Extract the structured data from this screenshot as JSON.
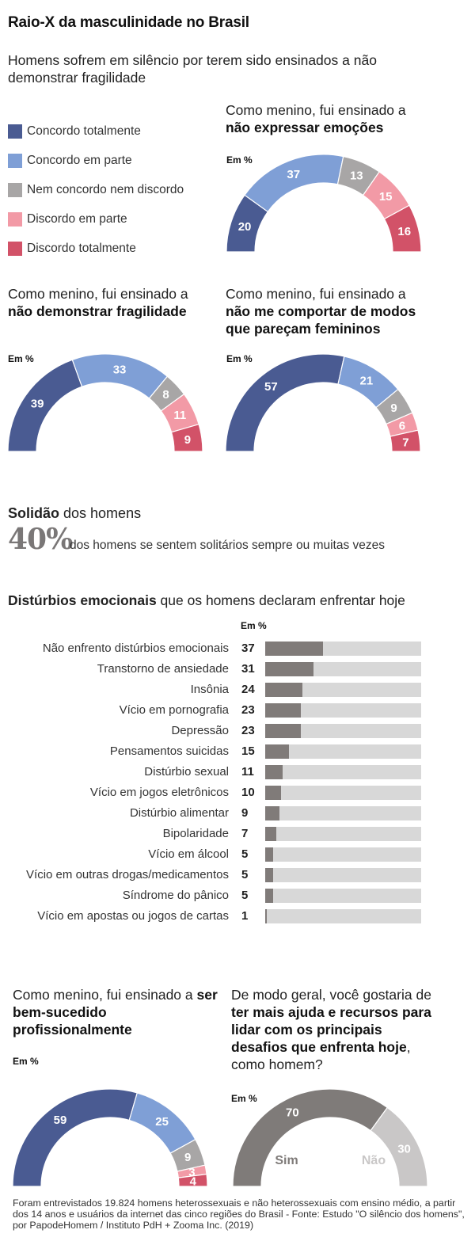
{
  "header": {
    "title": "Raio-X da masculinidade no Brasil",
    "subtitle": "Homens sofrem em silêncio por terem sido ensinados a não demonstrar fragilidade"
  },
  "legend": [
    {
      "label": "Concordo totalmente",
      "color": "#4a5b92"
    },
    {
      "label": "Concordo em parte",
      "color": "#7f9fd6"
    },
    {
      "label": "Nem concordo nem discordo",
      "color": "#a8a6a6"
    },
    {
      "label": "Discordo em parte",
      "color": "#f29aa6"
    },
    {
      "label": "Discordo totalmente",
      "color": "#d25268"
    }
  ],
  "unit_label": "Em %",
  "solidao": {
    "heading_bold": "Solidão",
    "heading_rest": " dos homens",
    "big_number": "40%",
    "text": "dos homens se sentem solitários sempre ou muitas vezes"
  },
  "disturbios": {
    "heading_bold": "Distúrbios emocionais",
    "heading_rest": " que os homens declaram enfrentar hoje"
  },
  "footnote": "Foram entrevistados 19.824 homens heterossexuais e não heterossexuais com ensino médio, a partir dos 14 anos e usuários da internet das cinco regiões do Brasil - Fonte: Estudo \"O silêncio dos homens\", por PapodeHomem / Instituto PdH + Zooma Inc. (2019)",
  "chart_data": [
    {
      "type": "pie",
      "variant": "half-donut",
      "title_prefix": "Como menino, fui ensinado a ",
      "title_bold": "não expressar emoções",
      "unit": "Em %",
      "categories": [
        "Concordo totalmente",
        "Concordo em parte",
        "Nem concordo nem discordo",
        "Discordo em parte",
        "Discordo totalmente"
      ],
      "values": [
        20,
        37,
        13,
        15,
        16
      ]
    },
    {
      "type": "pie",
      "variant": "half-donut",
      "title_prefix": "Como menino, fui ensinado a ",
      "title_bold": "não demonstrar fragilidade",
      "unit": "Em %",
      "categories": [
        "Concordo totalmente",
        "Concordo em parte",
        "Nem concordo nem discordo",
        "Discordo em parte",
        "Discordo totalmente"
      ],
      "values": [
        39,
        33,
        8,
        11,
        9
      ]
    },
    {
      "type": "pie",
      "variant": "half-donut",
      "title_prefix": "Como menino, fui ensinado a ",
      "title_bold": "não me comportar de modos que pareçam femininos",
      "unit": "Em %",
      "categories": [
        "Concordo totalmente",
        "Concordo em parte",
        "Nem concordo nem discordo",
        "Discordo em parte",
        "Discordo totalmente"
      ],
      "values": [
        57,
        21,
        9,
        6,
        7
      ]
    },
    {
      "type": "bar",
      "orientation": "horizontal",
      "title": "Distúrbios emocionais que os homens declaram enfrentar hoje",
      "unit": "Em %",
      "xlim": [
        0,
        100
      ],
      "categories": [
        "Não enfrento distúrbios emocionais",
        "Transtorno de ansiedade",
        "Insônia",
        "Vício em pornografia",
        "Depressão",
        "Pensamentos suicidas",
        "Distúrbio sexual",
        "Vício em jogos eletrônicos",
        "Distúrbio alimentar",
        "Bipolaridade",
        "Vício em álcool",
        "Vício em outras drogas/medicamentos",
        "Síndrome do pânico",
        "Vício em apostas ou jogos de cartas"
      ],
      "values": [
        37,
        31,
        24,
        23,
        23,
        15,
        11,
        10,
        9,
        7,
        5,
        5,
        5,
        1
      ],
      "fill_color": "#807b79",
      "track_color": "#d8d8d8"
    },
    {
      "type": "pie",
      "variant": "half-donut",
      "title_prefix": "Como menino, fui ensinado a ",
      "title_bold": "ser bem-sucedido profissionalmente",
      "unit": "Em %",
      "categories": [
        "Concordo totalmente",
        "Concordo em parte",
        "Nem concordo nem discordo",
        "Discordo em parte",
        "Discordo totalmente"
      ],
      "values": [
        59,
        25,
        9,
        3,
        4
      ]
    },
    {
      "type": "pie",
      "variant": "half-donut",
      "title_prefix": "De modo geral, você gostaria de ",
      "title_bold": "ter mais ajuda e recursos para lidar com os principais desafios que enfrenta hoje",
      "title_suffix": ", como homem?",
      "unit": "Em %",
      "categories": [
        "Sim",
        "Não"
      ],
      "values": [
        70,
        30
      ],
      "colors": [
        "#7f7b79",
        "#c9c7c7"
      ],
      "category_label_colors": [
        "#7f7b79",
        "#c9c7c7"
      ]
    }
  ]
}
